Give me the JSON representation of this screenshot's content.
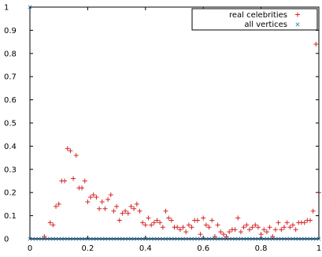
{
  "chart_data": {
    "type": "scatter",
    "title": "",
    "xlabel": "",
    "ylabel": "",
    "xlim": [
      0,
      1
    ],
    "ylim": [
      0,
      1
    ],
    "x_ticks": [
      0,
      0.2,
      0.4,
      0.6,
      0.8,
      1
    ],
    "x_tick_labels": [
      "0",
      "0.2",
      "0.4",
      "0.6",
      "0.8",
      "1"
    ],
    "y_ticks": [
      0,
      0.1,
      0.2,
      0.3,
      0.4,
      0.5,
      0.6,
      0.7,
      0.8,
      0.9,
      1
    ],
    "y_tick_labels": [
      "0",
      "0.1",
      "0.2",
      "0.3",
      "0.4",
      "0.5",
      "0.6",
      "0.7",
      "0.8",
      "0.9",
      "1"
    ],
    "grid": false,
    "legend_position": "top-right",
    "series": [
      {
        "name": "real celebrities",
        "marker": "plus",
        "color": "#d62728",
        "points": [
          [
            0.05,
            0.01
          ],
          [
            0.07,
            0.07
          ],
          [
            0.08,
            0.06
          ],
          [
            0.09,
            0.14
          ],
          [
            0.1,
            0.15
          ],
          [
            0.11,
            0.25
          ],
          [
            0.12,
            0.25
          ],
          [
            0.13,
            0.39
          ],
          [
            0.14,
            0.38
          ],
          [
            0.15,
            0.26
          ],
          [
            0.16,
            0.36
          ],
          [
            0.17,
            0.22
          ],
          [
            0.18,
            0.22
          ],
          [
            0.19,
            0.25
          ],
          [
            0.2,
            0.16
          ],
          [
            0.21,
            0.18
          ],
          [
            0.22,
            0.19
          ],
          [
            0.23,
            0.18
          ],
          [
            0.24,
            0.13
          ],
          [
            0.25,
            0.16
          ],
          [
            0.26,
            0.13
          ],
          [
            0.27,
            0.17
          ],
          [
            0.28,
            0.19
          ],
          [
            0.29,
            0.12
          ],
          [
            0.3,
            0.14
          ],
          [
            0.31,
            0.08
          ],
          [
            0.32,
            0.11
          ],
          [
            0.33,
            0.12
          ],
          [
            0.34,
            0.11
          ],
          [
            0.35,
            0.14
          ],
          [
            0.36,
            0.13
          ],
          [
            0.37,
            0.15
          ],
          [
            0.38,
            0.12
          ],
          [
            0.39,
            0.07
          ],
          [
            0.4,
            0.06
          ],
          [
            0.41,
            0.09
          ],
          [
            0.42,
            0.06
          ],
          [
            0.43,
            0.07
          ],
          [
            0.44,
            0.08
          ],
          [
            0.45,
            0.07
          ],
          [
            0.46,
            0.05
          ],
          [
            0.47,
            0.12
          ],
          [
            0.48,
            0.09
          ],
          [
            0.49,
            0.08
          ],
          [
            0.5,
            0.05
          ],
          [
            0.51,
            0.05
          ],
          [
            0.52,
            0.04
          ],
          [
            0.53,
            0.05
          ],
          [
            0.54,
            0.03
          ],
          [
            0.55,
            0.06
          ],
          [
            0.56,
            0.05
          ],
          [
            0.57,
            0.08
          ],
          [
            0.58,
            0.08
          ],
          [
            0.59,
            0.02
          ],
          [
            0.6,
            0.09
          ],
          [
            0.61,
            0.06
          ],
          [
            0.62,
            0.05
          ],
          [
            0.63,
            0.08
          ],
          [
            0.64,
            0.01
          ],
          [
            0.65,
            0.06
          ],
          [
            0.66,
            0.03
          ],
          [
            0.67,
            0.02
          ],
          [
            0.68,
            0.01
          ],
          [
            0.69,
            0.03
          ],
          [
            0.7,
            0.04
          ],
          [
            0.71,
            0.04
          ],
          [
            0.72,
            0.09
          ],
          [
            0.73,
            0.03
          ],
          [
            0.74,
            0.05
          ],
          [
            0.75,
            0.06
          ],
          [
            0.76,
            0.04
          ],
          [
            0.77,
            0.05
          ],
          [
            0.78,
            0.06
          ],
          [
            0.79,
            0.05
          ],
          [
            0.8,
            0.02
          ],
          [
            0.81,
            0.04
          ],
          [
            0.82,
            0.03
          ],
          [
            0.83,
            0.05
          ],
          [
            0.84,
            0.01
          ],
          [
            0.85,
            0.04
          ],
          [
            0.86,
            0.07
          ],
          [
            0.87,
            0.04
          ],
          [
            0.88,
            0.05
          ],
          [
            0.89,
            0.07
          ],
          [
            0.9,
            0.05
          ],
          [
            0.91,
            0.06
          ],
          [
            0.92,
            0.04
          ],
          [
            0.93,
            0.07
          ],
          [
            0.94,
            0.07
          ],
          [
            0.95,
            0.07
          ],
          [
            0.96,
            0.08
          ],
          [
            0.97,
            0.08
          ],
          [
            0.98,
            0.12
          ],
          [
            0.99,
            0.84
          ],
          [
            1.0,
            0.2
          ]
        ]
      },
      {
        "name": "all vertices",
        "marker": "cross",
        "color": "#3b8fc4",
        "x_start": 0.0,
        "x_end": 1.0,
        "x_step": 0.01,
        "y_constant": 0.0,
        "extra_points": [
          [
            0.0,
            1.0
          ]
        ]
      }
    ]
  }
}
